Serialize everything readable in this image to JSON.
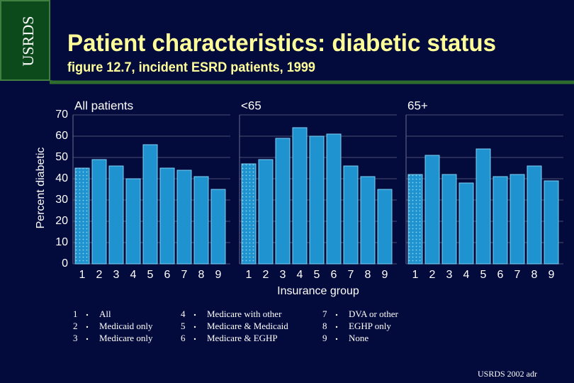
{
  "header": {
    "logo": "USRDS",
    "title": "Patient characteristics: diabetic status",
    "subtitle": "figure 12.7, incident ESRD patients, 1999"
  },
  "chart_data": [
    {
      "type": "bar",
      "title": "All patients",
      "ylabel": "Percent diabetic",
      "categories": [
        "1",
        "2",
        "3",
        "4",
        "5",
        "6",
        "7",
        "8",
        "9"
      ],
      "values": [
        45,
        49,
        46,
        40,
        56,
        45,
        44,
        41,
        35
      ],
      "color": "#1f93cf",
      "ylim": [
        0,
        70
      ],
      "yticks": [
        0,
        10,
        20,
        30,
        40,
        50,
        60,
        70
      ],
      "grid": true
    },
    {
      "type": "bar",
      "title": "<65",
      "xlabel": "Insurance group",
      "categories": [
        "1",
        "2",
        "3",
        "4",
        "5",
        "6",
        "7",
        "8",
        "9"
      ],
      "values": [
        47,
        49,
        59,
        64,
        60,
        61,
        46,
        41,
        35
      ],
      "color": "#1f93cf",
      "ylim": [
        0,
        70
      ],
      "yticks": [
        0,
        10,
        20,
        30,
        40,
        50,
        60,
        70
      ],
      "grid": true
    },
    {
      "type": "bar",
      "title": "65+",
      "categories": [
        "1",
        "2",
        "3",
        "4",
        "5",
        "6",
        "7",
        "8",
        "9"
      ],
      "values": [
        42,
        51,
        42,
        38,
        54,
        41,
        42,
        46,
        39
      ],
      "color": "#1f93cf",
      "ylim": [
        0,
        70
      ],
      "yticks": [
        0,
        10,
        20,
        30,
        40,
        50,
        60,
        70
      ],
      "grid": true
    }
  ],
  "legend": [
    {
      "code": "1",
      "label": "All"
    },
    {
      "code": "2",
      "label": "Medicaid only"
    },
    {
      "code": "3",
      "label": "Medicare only"
    },
    {
      "code": "4",
      "label": "Medicare with other"
    },
    {
      "code": "5",
      "label": "Medicare & Medicaid"
    },
    {
      "code": "6",
      "label": "Medicare & EGHP"
    },
    {
      "code": "7",
      "label": "DVA or other"
    },
    {
      "code": "8",
      "label": "EGHP only"
    },
    {
      "code": "9",
      "label": "None"
    }
  ],
  "footer": "USRDS 2002 adr"
}
